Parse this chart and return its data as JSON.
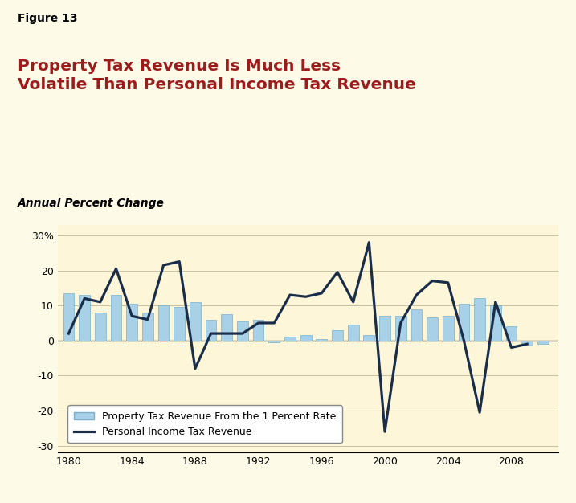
{
  "years": [
    1980,
    1981,
    1982,
    1983,
    1984,
    1985,
    1986,
    1987,
    1988,
    1989,
    1990,
    1991,
    1992,
    1993,
    1994,
    1995,
    1996,
    1997,
    1998,
    1999,
    2000,
    2001,
    2002,
    2003,
    2004,
    2005,
    2006,
    2007,
    2008,
    2009,
    2010
  ],
  "property_tax": [
    13.5,
    13.0,
    8.0,
    13.0,
    10.5,
    8.0,
    10.0,
    9.5,
    11.0,
    6.0,
    7.5,
    5.5,
    6.0,
    -0.5,
    1.0,
    1.5,
    0.5,
    3.0,
    4.5,
    1.5,
    7.0,
    7.0,
    9.0,
    6.5,
    7.0,
    10.5,
    12.0,
    10.0,
    4.0,
    -1.5,
    -1.0
  ],
  "pit_years": [
    1980,
    1981,
    1982,
    1983,
    1984,
    1985,
    1986,
    1987,
    1988,
    1989,
    1990,
    1991,
    1992,
    1993,
    1994,
    1995,
    1996,
    1997,
    1998,
    1999,
    2000,
    2001,
    2002,
    2003,
    2004,
    2005,
    2006,
    2007,
    2008,
    2009
  ],
  "personal_income_tax": [
    2.0,
    12.0,
    11.0,
    20.5,
    7.0,
    6.0,
    21.5,
    22.5,
    -8.0,
    2.0,
    2.0,
    2.0,
    5.0,
    5.0,
    13.0,
    12.5,
    13.5,
    19.5,
    11.0,
    28.0,
    -26.0,
    5.0,
    13.0,
    17.0,
    16.5,
    0.0,
    -20.5,
    11.0,
    -2.0,
    -1.0
  ],
  "bar_color": "#a8d0e6",
  "bar_edge_color": "#7ab0cc",
  "line_color": "#1a2e4a",
  "bg_color": "#fdfae8",
  "plot_bg_color": "#fdf6d8",
  "title_fig": "Figure 13",
  "title_main": "Property Tax Revenue Is Much Less\nVolatile Than Personal Income Tax Revenue",
  "title_color": "#9b1c1c",
  "subtitle": "Annual Percent Change",
  "xlabel_ticks": [
    1980,
    1984,
    1988,
    1992,
    1996,
    2000,
    2004,
    2008
  ],
  "yticks": [
    -30,
    -20,
    -10,
    0,
    10,
    20,
    30
  ],
  "ylim": [
    -32,
    33
  ],
  "xlim": [
    1979.3,
    2011.0
  ],
  "legend_label_bar": "Property Tax Revenue From the 1 Percent Rate",
  "legend_label_line": "Personal Income Tax Revenue",
  "bar_width": 0.7
}
